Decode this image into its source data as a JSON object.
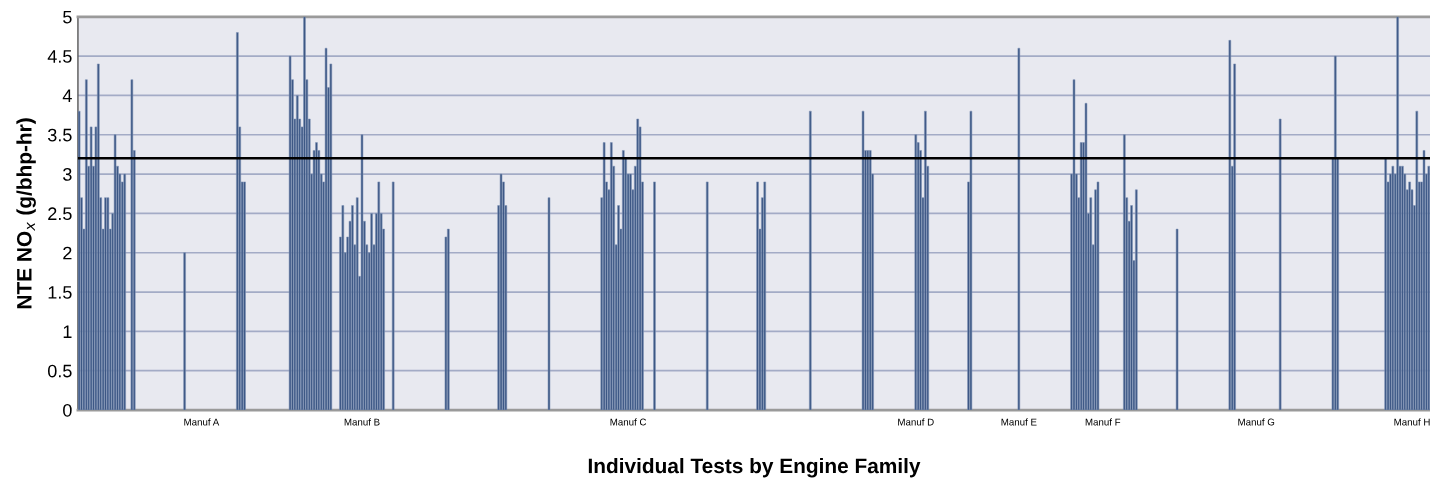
{
  "chart_data": {
    "type": "bar",
    "xlabel": "Individual Tests by Engine Family",
    "ylabel": "NTE NO$_{x}$ (g/bhp-hr)",
    "categories": [
      null,
      null,
      null,
      null,
      null,
      null,
      null,
      null,
      null,
      null,
      null,
      null,
      null,
      null,
      null,
      null,
      null,
      null,
      null,
      null,
      null,
      null,
      null,
      null,
      null,
      null,
      null,
      null,
      null,
      null,
      null,
      null,
      null,
      null,
      null,
      null,
      null,
      null,
      null,
      null,
      null,
      null,
      null,
      null,
      null,
      null,
      null,
      null,
      null,
      null,
      null,
      "Manuf A",
      null,
      null,
      null,
      null,
      null,
      null,
      null,
      null,
      null,
      null,
      null,
      null,
      null,
      null,
      null,
      null,
      null,
      null,
      null,
      null,
      null,
      null,
      null,
      null,
      null,
      null,
      null,
      null,
      null,
      null,
      null,
      null,
      null,
      null,
      null,
      null,
      null,
      null,
      null,
      null,
      null,
      null,
      null,
      null,
      null,
      null,
      null,
      null,
      null,
      null,
      null,
      null,
      null,
      null,
      null,
      null,
      null,
      null,
      null,
      null,
      null,
      null,
      null,
      null,
      null,
      null,
      "Manuf B",
      null,
      null,
      null,
      null,
      null,
      null,
      null,
      null,
      null,
      null,
      null,
      null,
      null,
      null,
      null,
      null,
      null,
      null,
      null,
      null,
      null,
      null,
      null,
      null,
      null,
      null,
      null,
      null,
      null,
      null,
      null,
      null,
      null,
      null,
      null,
      null,
      null,
      null,
      null,
      null,
      null,
      null,
      null,
      null,
      null,
      null,
      null,
      null,
      null,
      null,
      null,
      null,
      null,
      null,
      null,
      null,
      null,
      null,
      null,
      null,
      null,
      null,
      null,
      null,
      null,
      null,
      null,
      null,
      null,
      null,
      null,
      null,
      null,
      null,
      null,
      null,
      null,
      null,
      null,
      null,
      null,
      null,
      null,
      null,
      null,
      null,
      null,
      null,
      null,
      null,
      null,
      null,
      null,
      null,
      null,
      null,
      null,
      null,
      null,
      null,
      null,
      null,
      null,
      null,
      null,
      null,
      null,
      null,
      null,
      null,
      "Manuf C",
      null,
      null,
      null,
      null,
      null,
      null,
      null,
      null,
      null,
      null,
      null,
      null,
      null,
      null,
      null,
      null,
      null,
      null,
      null,
      null,
      null,
      null,
      null,
      null,
      null,
      null,
      null,
      null,
      null,
      null,
      null,
      null,
      null,
      null,
      null,
      null,
      null,
      null,
      null,
      null,
      null,
      null,
      null,
      null,
      null,
      null,
      null,
      null,
      null,
      null,
      null,
      null,
      null,
      null,
      null,
      null,
      null,
      null,
      null,
      null,
      null,
      null,
      null,
      null,
      null,
      null,
      null,
      null,
      null,
      null,
      null,
      null,
      null,
      null,
      null,
      null,
      null,
      null,
      null,
      null,
      null,
      null,
      null,
      null,
      null,
      null,
      null,
      null,
      null,
      null,
      null,
      null,
      null,
      null,
      null,
      null,
      null,
      null,
      null,
      null,
      null,
      null,
      null,
      null,
      null,
      null,
      null,
      null,
      null,
      null,
      null,
      null,
      null,
      null,
      null,
      null,
      null,
      null,
      null,
      "Manuf D",
      null,
      null,
      null,
      null,
      null,
      null,
      null,
      null,
      null,
      null,
      null,
      null,
      null,
      null,
      null,
      null,
      null,
      null,
      null,
      null,
      null,
      null,
      null,
      null,
      null,
      null,
      null,
      null,
      null,
      null,
      null,
      null,
      null,
      null,
      null,
      null,
      null,
      null,
      null,
      null,
      null,
      null,
      "Manuf E",
      null,
      null,
      null,
      null,
      null,
      null,
      null,
      null,
      null,
      null,
      null,
      null,
      null,
      null,
      null,
      null,
      null,
      null,
      null,
      null,
      null,
      null,
      null,
      null,
      null,
      null,
      null,
      null,
      null,
      null,
      null,
      null,
      null,
      null,
      "Manuf F",
      null,
      null,
      null,
      null,
      null,
      null,
      null,
      null,
      null,
      null,
      null,
      null,
      null,
      null,
      null,
      null,
      null,
      null,
      null,
      null,
      null,
      null,
      null,
      null,
      null,
      null,
      null,
      null,
      null,
      null,
      null,
      null,
      null,
      null,
      null,
      null,
      null,
      null,
      null,
      null,
      null,
      null,
      null,
      null,
      null,
      null,
      null,
      null,
      null,
      null,
      null,
      null,
      null,
      null,
      null,
      null,
      null,
      null,
      null,
      null,
      null,
      null,
      null,
      "Manuf G",
      null,
      null,
      null,
      null,
      null,
      null,
      null,
      null,
      null,
      null,
      null,
      null,
      null,
      null,
      null,
      null,
      null,
      null,
      null,
      null,
      null,
      null,
      null,
      null,
      null,
      null,
      null,
      null,
      null,
      null,
      null,
      null,
      null,
      null,
      null,
      null,
      null,
      null,
      null,
      null,
      null,
      null,
      null,
      null,
      null,
      null,
      null,
      null,
      null,
      null,
      null,
      null,
      null,
      null,
      null,
      null,
      null,
      null,
      null,
      null,
      null,
      null,
      null,
      null,
      "Manuf H",
      null,
      null,
      null,
      null,
      null,
      null,
      null
    ],
    "values": [
      3.8,
      2.7,
      2.3,
      4.2,
      3.1,
      3.6,
      3.1,
      3.6,
      4.4,
      2.7,
      2.3,
      2.7,
      2.7,
      2.3,
      2.5,
      3.5,
      3.1,
      3.0,
      2.9,
      3.0,
      null,
      null,
      4.2,
      3.3,
      null,
      null,
      null,
      null,
      null,
      null,
      null,
      null,
      null,
      null,
      null,
      null,
      null,
      null,
      null,
      null,
      null,
      null,
      null,
      null,
      2.0,
      null,
      null,
      null,
      null,
      null,
      null,
      null,
      null,
      null,
      null,
      null,
      null,
      null,
      null,
      null,
      null,
      null,
      null,
      null,
      null,
      null,
      4.8,
      3.6,
      2.9,
      2.9,
      null,
      null,
      null,
      null,
      null,
      null,
      null,
      null,
      null,
      null,
      null,
      null,
      null,
      null,
      null,
      null,
      null,
      null,
      4.5,
      4.2,
      3.7,
      4.0,
      3.7,
      3.6,
      5.0,
      4.2,
      3.7,
      3.0,
      3.3,
      3.4,
      3.3,
      3.0,
      2.9,
      4.6,
      4.1,
      4.4,
      null,
      null,
      null,
      2.2,
      2.6,
      2.0,
      2.2,
      2.4,
      2.6,
      2.1,
      2.7,
      1.7,
      3.5,
      2.4,
      2.1,
      2.0,
      2.5,
      2.1,
      2.5,
      2.9,
      2.5,
      2.3,
      null,
      null,
      null,
      2.9,
      null,
      null,
      null,
      null,
      null,
      null,
      null,
      null,
      null,
      null,
      null,
      null,
      null,
      null,
      null,
      null,
      null,
      null,
      null,
      null,
      null,
      2.2,
      2.3,
      null,
      null,
      null,
      null,
      null,
      null,
      null,
      null,
      null,
      null,
      null,
      null,
      null,
      null,
      null,
      null,
      null,
      null,
      null,
      null,
      2.6,
      3.0,
      2.9,
      2.6,
      null,
      null,
      null,
      null,
      null,
      null,
      null,
      null,
      null,
      null,
      null,
      null,
      null,
      null,
      null,
      null,
      null,
      2.7,
      null,
      null,
      null,
      null,
      null,
      null,
      null,
      null,
      null,
      null,
      null,
      null,
      null,
      null,
      null,
      null,
      null,
      null,
      null,
      null,
      null,
      2.7,
      3.4,
      2.9,
      2.8,
      3.4,
      3.1,
      2.1,
      2.6,
      2.3,
      3.3,
      3.2,
      3.0,
      3.0,
      2.8,
      3.1,
      3.7,
      3.6,
      2.9,
      null,
      null,
      null,
      null,
      2.9,
      null,
      null,
      null,
      null,
      null,
      null,
      null,
      null,
      null,
      null,
      null,
      null,
      null,
      null,
      null,
      null,
      null,
      null,
      null,
      null,
      null,
      2.9,
      null,
      null,
      null,
      null,
      null,
      null,
      null,
      null,
      null,
      null,
      null,
      null,
      null,
      null,
      null,
      null,
      null,
      null,
      null,
      null,
      2.9,
      2.3,
      2.7,
      2.9,
      null,
      null,
      null,
      null,
      null,
      null,
      null,
      null,
      null,
      null,
      null,
      null,
      null,
      null,
      null,
      null,
      null,
      null,
      3.8,
      null,
      null,
      null,
      null,
      null,
      null,
      null,
      null,
      null,
      null,
      null,
      null,
      null,
      null,
      null,
      null,
      null,
      null,
      null,
      null,
      null,
      3.8,
      3.3,
      3.3,
      3.3,
      3.0,
      null,
      null,
      null,
      null,
      null,
      null,
      null,
      null,
      null,
      null,
      null,
      null,
      null,
      null,
      null,
      null,
      null,
      3.5,
      3.4,
      3.3,
      2.7,
      3.8,
      3.1,
      null,
      null,
      null,
      null,
      null,
      null,
      null,
      null,
      null,
      null,
      null,
      null,
      null,
      null,
      null,
      null,
      2.9,
      3.8,
      null,
      null,
      null,
      null,
      null,
      null,
      null,
      null,
      null,
      null,
      null,
      null,
      null,
      null,
      null,
      null,
      null,
      null,
      null,
      4.6,
      null,
      null,
      null,
      null,
      null,
      null,
      null,
      null,
      null,
      null,
      null,
      null,
      null,
      null,
      null,
      null,
      null,
      null,
      null,
      null,
      null,
      3.0,
      4.2,
      3.0,
      2.7,
      3.4,
      3.4,
      3.9,
      2.5,
      2.7,
      2.1,
      2.8,
      2.9,
      null,
      null,
      null,
      null,
      null,
      null,
      null,
      null,
      null,
      null,
      3.5,
      2.7,
      2.4,
      2.6,
      1.9,
      2.8,
      null,
      null,
      null,
      null,
      null,
      null,
      null,
      null,
      null,
      null,
      null,
      null,
      null,
      null,
      null,
      null,
      2.3,
      null,
      null,
      null,
      null,
      null,
      null,
      null,
      null,
      null,
      null,
      null,
      null,
      null,
      null,
      null,
      null,
      null,
      null,
      null,
      null,
      null,
      4.7,
      3.1,
      4.4,
      null,
      null,
      null,
      null,
      null,
      null,
      null,
      null,
      null,
      null,
      null,
      null,
      null,
      null,
      null,
      null,
      null,
      null,
      3.7,
      null,
      null,
      null,
      null,
      null,
      null,
      null,
      null,
      null,
      null,
      null,
      null,
      null,
      null,
      null,
      null,
      null,
      null,
      null,
      null,
      null,
      3.2,
      4.5,
      3.2,
      null,
      null,
      null,
      null,
      null,
      null,
      null,
      null,
      null,
      null,
      null,
      null,
      null,
      null,
      null,
      null,
      null,
      null,
      null,
      3.2,
      2.9,
      3.0,
      3.1,
      3.0,
      5.0,
      3.1,
      3.1,
      3.0,
      2.8,
      2.9,
      2.8,
      2.6,
      3.8,
      2.9,
      2.9,
      3.3,
      3.0,
      3.1
    ],
    "color": "#3b5684",
    "ylim": [
      0,
      5
    ],
    "yticks": [
      0,
      0.5,
      1,
      1.5,
      2,
      2.5,
      3,
      3.5,
      4,
      4.5,
      5
    ],
    "grid": "y",
    "ref_lines": [
      {
        "axis": "y",
        "value": 3.2,
        "color": "#000000"
      }
    ]
  }
}
